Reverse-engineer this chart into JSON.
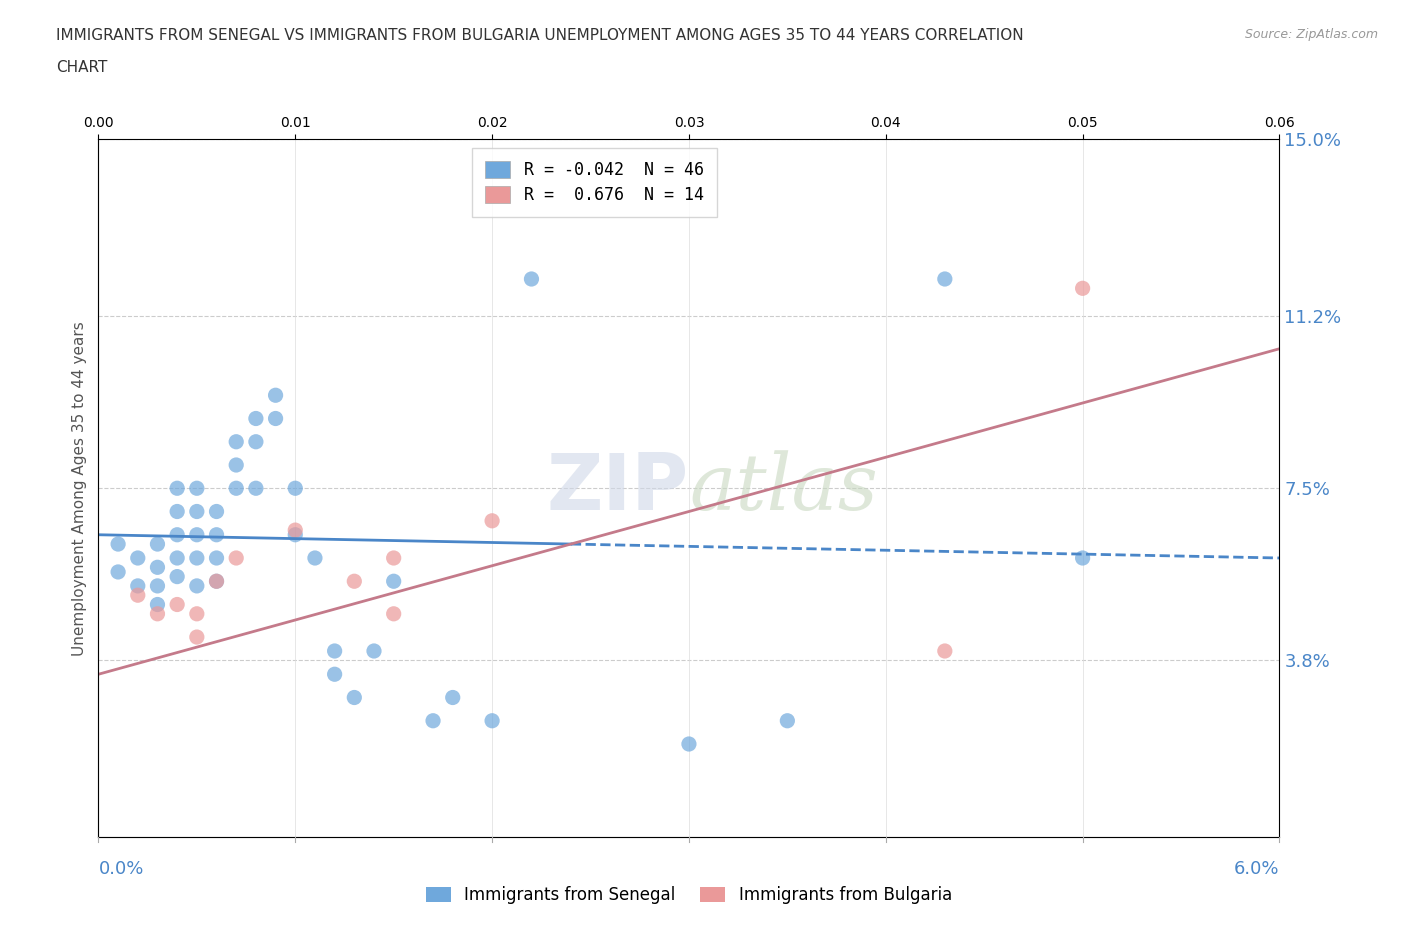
{
  "title_line1": "IMMIGRANTS FROM SENEGAL VS IMMIGRANTS FROM BULGARIA UNEMPLOYMENT AMONG AGES 35 TO 44 YEARS CORRELATION",
  "title_line2": "CHART",
  "source_text": "Source: ZipAtlas.com",
  "ylabel": "Unemployment Among Ages 35 to 44 years",
  "xlim": [
    0.0,
    0.06
  ],
  "ylim": [
    0.0,
    0.15
  ],
  "yticks": [
    0.038,
    0.075,
    0.112,
    0.15
  ],
  "ytick_labels": [
    "3.8%",
    "7.5%",
    "11.2%",
    "15.0%"
  ],
  "xticks": [
    0.0,
    0.01,
    0.02,
    0.03,
    0.04,
    0.05,
    0.06
  ],
  "xtick_labels_show": {
    "0": "0.0%",
    "6": "6.0%"
  },
  "senegal_color": "#6fa8dc",
  "bulgaria_color": "#ea9999",
  "senegal_line_color": "#4a86c8",
  "bulgaria_line_color": "#c47a8a",
  "R_senegal": -0.042,
  "N_senegal": 46,
  "R_bulgaria": 0.676,
  "N_bulgaria": 14,
  "legend_label_senegal": "Immigrants from Senegal",
  "legend_label_bulgaria": "Immigrants from Bulgaria",
  "senegal_x": [
    0.001,
    0.001,
    0.002,
    0.002,
    0.003,
    0.003,
    0.003,
    0.003,
    0.004,
    0.004,
    0.004,
    0.004,
    0.004,
    0.005,
    0.005,
    0.005,
    0.005,
    0.005,
    0.006,
    0.006,
    0.006,
    0.006,
    0.007,
    0.007,
    0.007,
    0.008,
    0.008,
    0.008,
    0.009,
    0.009,
    0.01,
    0.01,
    0.011,
    0.012,
    0.012,
    0.013,
    0.014,
    0.015,
    0.017,
    0.018,
    0.02,
    0.022,
    0.03,
    0.035,
    0.043,
    0.05
  ],
  "senegal_y": [
    0.063,
    0.057,
    0.06,
    0.054,
    0.063,
    0.058,
    0.054,
    0.05,
    0.075,
    0.07,
    0.065,
    0.06,
    0.056,
    0.075,
    0.07,
    0.065,
    0.06,
    0.054,
    0.07,
    0.065,
    0.06,
    0.055,
    0.085,
    0.08,
    0.075,
    0.09,
    0.085,
    0.075,
    0.095,
    0.09,
    0.075,
    0.065,
    0.06,
    0.04,
    0.035,
    0.03,
    0.04,
    0.055,
    0.025,
    0.03,
    0.025,
    0.12,
    0.02,
    0.025,
    0.12,
    0.06
  ],
  "bulgaria_x": [
    0.002,
    0.003,
    0.004,
    0.005,
    0.005,
    0.006,
    0.007,
    0.01,
    0.013,
    0.015,
    0.015,
    0.02,
    0.043,
    0.05
  ],
  "bulgaria_y": [
    0.052,
    0.048,
    0.05,
    0.048,
    0.043,
    0.055,
    0.06,
    0.066,
    0.055,
    0.06,
    0.048,
    0.068,
    0.04,
    0.118
  ],
  "senegal_line_y0": 0.065,
  "senegal_line_y1": 0.06,
  "bulgaria_line_y0": 0.035,
  "bulgaria_line_y1": 0.105
}
